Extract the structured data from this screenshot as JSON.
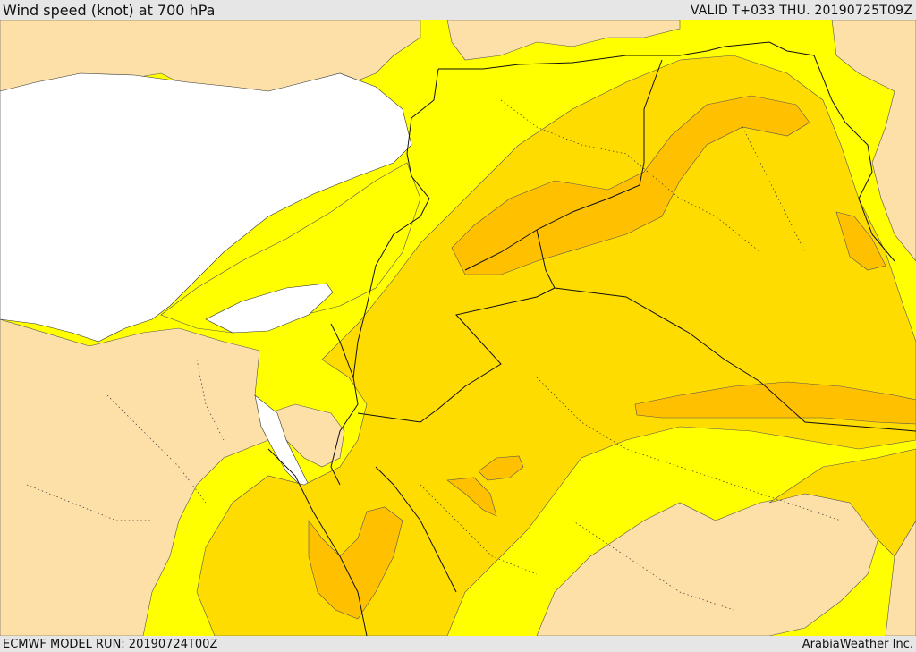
{
  "header": {
    "title": "Wind speed (knot) at 700 hPa",
    "valid_time": "VALID T+033 THU. 20190725T09Z"
  },
  "footer": {
    "model_run": "ECMWF MODEL RUN: 20190724T00Z",
    "credit": "ArabiaWeather Inc."
  },
  "map": {
    "parameter": "wind speed",
    "level_hpa": 700,
    "colors": {
      "lowest_band": "#fde0a8",
      "band_2": "#ffff00",
      "band_3": "#ffdc00",
      "band_4": "#ffc000",
      "band_5": "#ffa800",
      "sea_no_data": "#ffffff",
      "border": "#000000"
    }
  }
}
